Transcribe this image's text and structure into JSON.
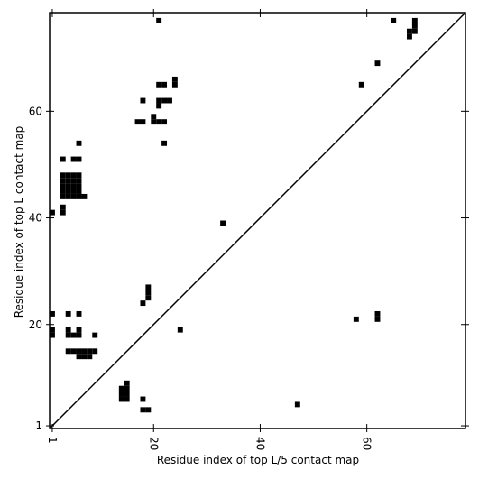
{
  "chart_data": {
    "type": "scatter",
    "xlabel": "Residue index of top L/5 contact map",
    "ylabel": "Residue index of top L contact map",
    "xlim": [
      0.5,
      78.5
    ],
    "ylim": [
      0.5,
      78.5
    ],
    "xticks": [
      1,
      20,
      40,
      60
    ],
    "yticks": [
      1,
      20,
      40,
      60
    ],
    "series": [
      {
        "color": "#000000",
        "x": [
          21,
          65,
          69,
          69,
          69,
          68,
          68,
          62,
          59,
          21,
          22,
          24,
          24,
          18,
          21,
          22,
          23,
          21,
          20,
          17,
          18,
          20,
          21,
          22,
          22,
          6,
          3,
          5,
          6,
          3,
          3,
          3,
          3,
          3,
          4,
          4,
          4,
          4,
          4,
          5,
          5,
          5,
          5,
          5,
          6,
          6,
          6,
          6,
          6,
          7,
          1,
          3,
          3,
          33,
          19,
          19,
          19,
          18,
          1,
          4,
          6,
          58,
          62,
          62,
          1,
          1,
          4,
          4,
          5,
          6,
          6,
          9,
          25,
          4,
          5,
          6,
          7,
          8,
          9,
          6,
          7,
          8,
          14,
          14,
          14,
          15,
          15,
          15,
          15,
          18,
          47,
          18,
          19
        ],
        "values": [
          77,
          77,
          77,
          76,
          75,
          75,
          74,
          69,
          65,
          65,
          65,
          66,
          65,
          62,
          62,
          62,
          62,
          61,
          59,
          58,
          58,
          58,
          58,
          58,
          54,
          54,
          51,
          51,
          51,
          44,
          45,
          46,
          47,
          48,
          44,
          45,
          46,
          47,
          48,
          44,
          45,
          46,
          47,
          48,
          44,
          45,
          46,
          47,
          48,
          44,
          41,
          42,
          41,
          39,
          27,
          26,
          25,
          24,
          22,
          22,
          22,
          21,
          22,
          21,
          19,
          18,
          19,
          18,
          18,
          19,
          18,
          18,
          19,
          15,
          15,
          15,
          15,
          15,
          15,
          14,
          14,
          14,
          6,
          7,
          8,
          6,
          7,
          8,
          9,
          6,
          5,
          4,
          4
        ]
      }
    ]
  }
}
